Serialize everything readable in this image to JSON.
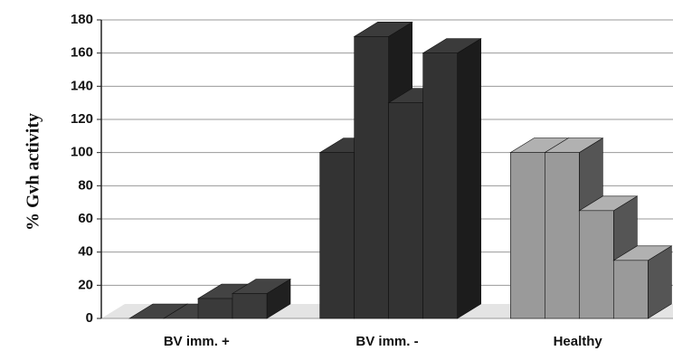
{
  "chart_data": {
    "type": "bar3d",
    "y_label": "% Gvh activity",
    "categories": [
      "BV imm. +",
      "BV imm. -",
      "Healthy"
    ],
    "values": [
      [
        0,
        0,
        12,
        15
      ],
      [
        100,
        170,
        130,
        160
      ],
      [
        100,
        100,
        65,
        35
      ]
    ],
    "colors": [
      "#3a3a3a",
      "#333333",
      "#9a9a9a"
    ],
    "ylim": [
      0,
      180
    ],
    "yticks": [
      0,
      20,
      40,
      60,
      80,
      100,
      120,
      140,
      160,
      180
    ],
    "grid": true
  }
}
